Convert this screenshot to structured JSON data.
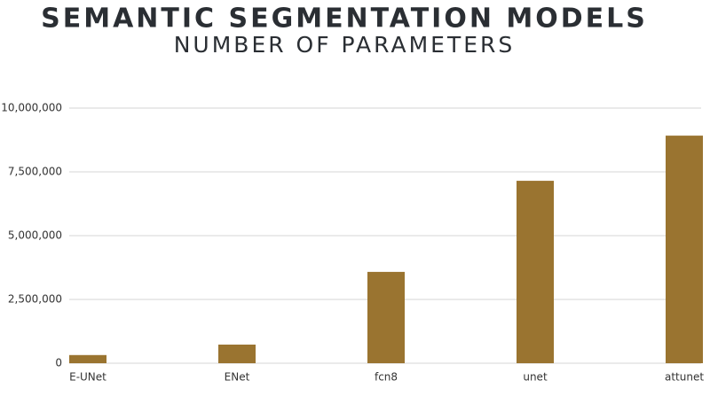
{
  "chart_data": {
    "type": "bar",
    "title": "SEMANTIC SEGMENTATION MODELS",
    "subtitle": "NUMBER OF PARAMETERS",
    "categories": [
      "E-UNet",
      "ENet",
      "fcn8",
      "unet",
      "attunet"
    ],
    "values": [
      320000,
      730000,
      3580000,
      7150000,
      8920000
    ],
    "color": "#9a7430",
    "ylim": [
      0,
      10000000
    ],
    "yticks": [
      0,
      {
        "value": 2500000,
        "label": "2,500,000"
      },
      {
        "value": 5000000,
        "label": "5,000,000"
      },
      {
        "value": 7500000,
        "label": "7,500,000"
      },
      {
        "value": 10000000,
        "label": "10,000,000"
      }
    ],
    "grid": true
  }
}
